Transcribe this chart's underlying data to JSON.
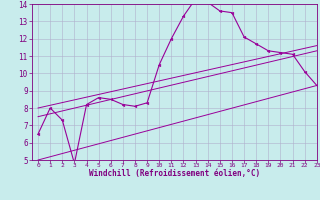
{
  "xlabel": "Windchill (Refroidissement éolien,°C)",
  "bg_color": "#c8ecec",
  "line_color": "#990099",
  "grid_color": "#b0b0cc",
  "line1_x": [
    0,
    1,
    2,
    3,
    4,
    5,
    6,
    7,
    8,
    9,
    10,
    11,
    12,
    13,
    14,
    15,
    16,
    17,
    18,
    19,
    20,
    21,
    22,
    23
  ],
  "line1_y": [
    6.5,
    8.0,
    7.3,
    4.8,
    8.2,
    8.6,
    8.5,
    8.2,
    8.1,
    8.3,
    10.5,
    12.0,
    13.3,
    14.3,
    14.1,
    13.6,
    13.5,
    12.1,
    11.7,
    11.3,
    11.2,
    11.1,
    10.1,
    9.3
  ],
  "line2_x": [
    0,
    23
  ],
  "line2_y": [
    5.0,
    9.3
  ],
  "line3_x": [
    0,
    23
  ],
  "line3_y": [
    7.5,
    11.3
  ],
  "line4_x": [
    0,
    23
  ],
  "line4_y": [
    8.0,
    11.6
  ],
  "xlim": [
    -0.5,
    23
  ],
  "ylim": [
    5,
    14
  ],
  "xtick_fontsize": 4.5,
  "ytick_fontsize": 5.5,
  "xlabel_fontsize": 5.5
}
